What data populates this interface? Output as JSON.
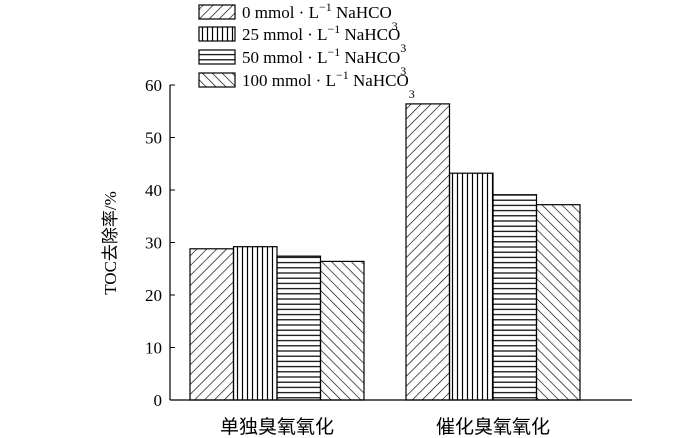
{
  "chart_data": {
    "type": "bar",
    "categories": [
      "单独臭氧氧化",
      "催化臭氧氧化"
    ],
    "series": [
      {
        "name": "0 mmol·L⁻¹ NaHCO₃",
        "name_main": "0 mmol",
        "name_unit": "L",
        "name_exp": "−1",
        "name_chem": "NaHCO",
        "name_sub": "3",
        "pattern": "diag-right",
        "values": [
          28.8,
          56.4
        ]
      },
      {
        "name": "25 mmol·L⁻¹ NaHCO₃",
        "name_main": "25 mmol",
        "name_unit": "L",
        "name_exp": "−1",
        "name_chem": "NaHCO",
        "name_sub": "3",
        "pattern": "vertical",
        "values": [
          29.2,
          43.2
        ]
      },
      {
        "name": "50 mmol·L⁻¹ NaHCO₃",
        "name_main": "50 mmol",
        "name_unit": "L",
        "name_exp": "−1",
        "name_chem": "NaHCO",
        "name_sub": "3",
        "pattern": "horizontal",
        "values": [
          27.4,
          39.1
        ]
      },
      {
        "name": "100 mmol·L⁻¹ NaHCO₃",
        "name_main": "100 mmol",
        "name_unit": "L",
        "name_exp": "−1",
        "name_chem": "NaHCO",
        "name_sub": "3",
        "pattern": "diag-left",
        "values": [
          26.4,
          37.2
        ]
      }
    ],
    "ylabel": "TOC去除率/%",
    "xlabel": "",
    "ylim": [
      0,
      60
    ],
    "yticks": [
      0,
      10,
      20,
      30,
      40,
      50,
      60
    ],
    "grid": false,
    "legend_position": "top"
  }
}
